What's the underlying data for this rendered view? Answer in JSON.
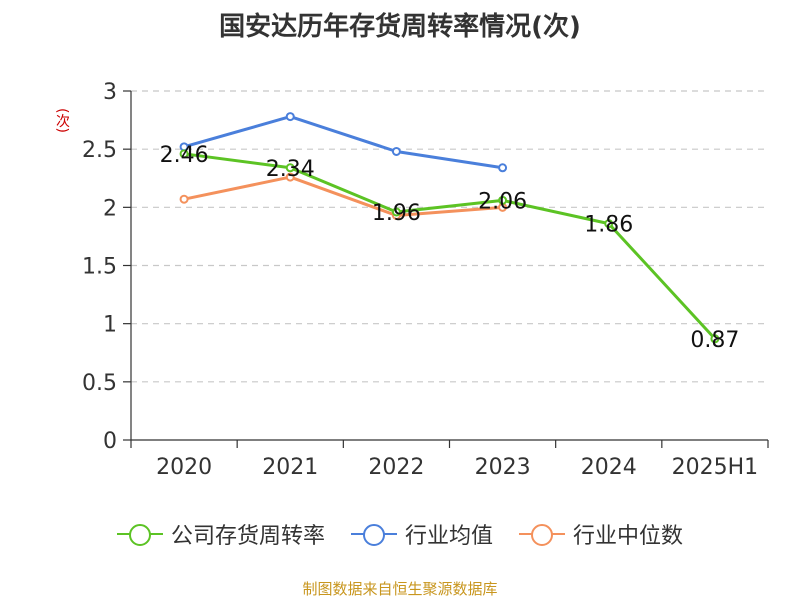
{
  "chart_data": {
    "type": "line",
    "title": "国安达历年存货周转率情况(次)",
    "ylabel": "(次)",
    "categories": [
      "2020",
      "2021",
      "2022",
      "2023",
      "2024",
      "2025H1"
    ],
    "ylim": [
      0,
      3
    ],
    "yticks": [
      0,
      0.5,
      1,
      1.5,
      2,
      2.5,
      3
    ],
    "ytick_labels": [
      "0",
      "0.5",
      "1",
      "1.5",
      "2",
      "2.5",
      "3"
    ],
    "grid": true,
    "legend_position": "bottom",
    "series": [
      {
        "name": "公司存货周转率",
        "color": "#5cc324",
        "values": [
          2.46,
          2.34,
          1.96,
          2.06,
          1.86,
          0.87
        ],
        "labels": [
          "2.46",
          "2.34",
          "1.96",
          "2.06",
          "1.86",
          "0.87"
        ]
      },
      {
        "name": "行业均值",
        "color": "#4a7fdb",
        "values": [
          2.52,
          2.78,
          2.48,
          2.34,
          null,
          null
        ]
      },
      {
        "name": "行业中位数",
        "color": "#f4915c",
        "values": [
          2.07,
          2.26,
          1.93,
          2.0,
          null,
          null
        ]
      }
    ]
  },
  "source": "制图数据来自恒生聚源数据库"
}
